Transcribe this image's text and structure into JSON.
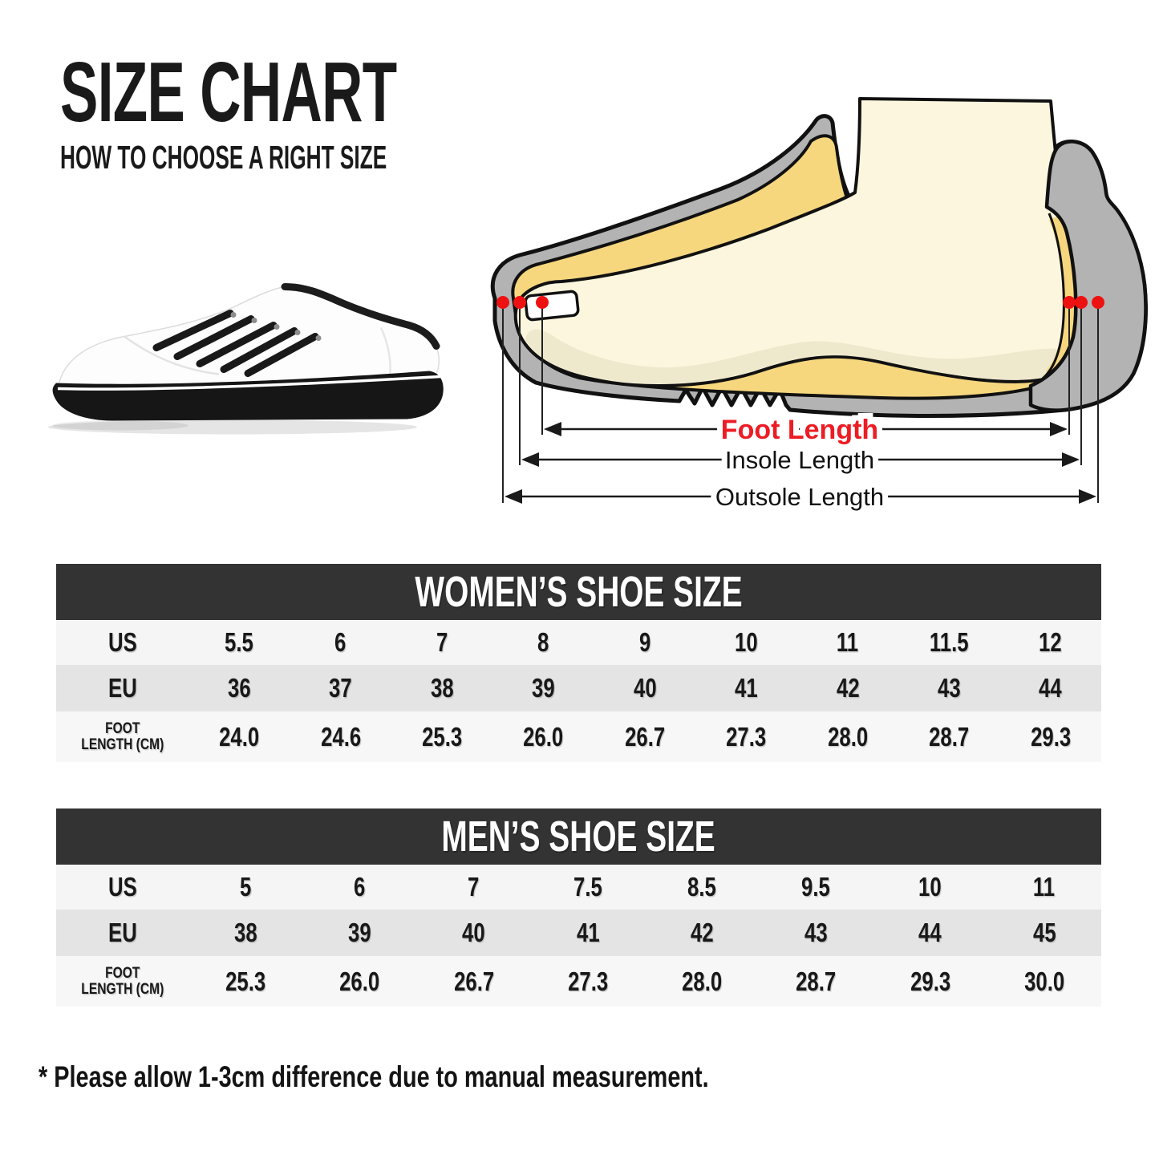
{
  "title": {
    "main": "SIZE CHART",
    "subtitle": "HOW TO CHOOSE A RIGHT SIZE"
  },
  "diagram": {
    "foot_length_label": "Foot Length",
    "insole_length_label": "Insole Length",
    "outsole_length_label": "Outsole Length",
    "foot_label_color": "#ed1c24",
    "marker_color": "#ee1111"
  },
  "illustrations": {
    "sneaker": "white-lowtop-sneaker-side-view",
    "foot": "foot-inside-shoe-cross-section"
  },
  "tables": [
    {
      "id": "womens",
      "title": "WOMEN’S SHOE SIZE",
      "rows": [
        {
          "key": "us",
          "label": "US",
          "values": [
            "5.5",
            "6",
            "7",
            "8",
            "9",
            "10",
            "11",
            "11.5",
            "12"
          ]
        },
        {
          "key": "eu",
          "label": "EU",
          "values": [
            "36",
            "37",
            "38",
            "39",
            "40",
            "41",
            "42",
            "43",
            "44"
          ]
        },
        {
          "key": "foot-length-cm",
          "label": "FOOT LENGTH (CM)",
          "label_lines": [
            "FOOT",
            "LENGTH (CM)"
          ],
          "values": [
            "24.0",
            "24.6",
            "25.3",
            "26.0",
            "26.7",
            "27.3",
            "28.0",
            "28.7",
            "29.3"
          ]
        }
      ]
    },
    {
      "id": "mens",
      "title": "MEN’S SHOE SIZE",
      "rows": [
        {
          "key": "us",
          "label": "US",
          "values": [
            "5",
            "6",
            "7",
            "7.5",
            "8.5",
            "9.5",
            "10",
            "11"
          ]
        },
        {
          "key": "eu",
          "label": "EU",
          "values": [
            "38",
            "39",
            "40",
            "41",
            "42",
            "43",
            "44",
            "45"
          ]
        },
        {
          "key": "foot-length-cm",
          "label": "FOOT LENGTH (CM)",
          "label_lines": [
            "FOOT",
            "LENGTH (CM)"
          ],
          "values": [
            "25.3",
            "26.0",
            "26.7",
            "27.3",
            "28.0",
            "28.7",
            "29.3",
            "30.0"
          ]
        }
      ]
    }
  ],
  "footnote": "* Please allow 1-3cm difference due to manual measurement.",
  "colors": {
    "header_bar": "#333333",
    "row_light": "#f5f5f5",
    "row_alt": "#e4e4e4",
    "row_lighter": "#f7f7f7",
    "accent_red": "#ed1c24",
    "shoe_gray": "#b3b3b3",
    "insole_yellow": "#f6d77e",
    "foot_cream": "#fbf6dd"
  }
}
